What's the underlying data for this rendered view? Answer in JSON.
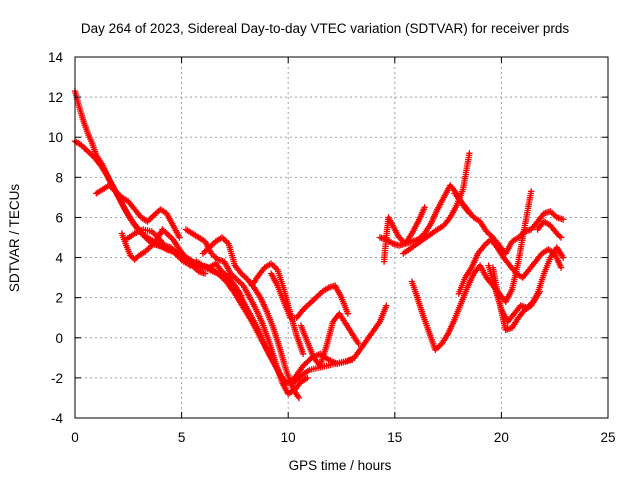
{
  "chart_data": {
    "type": "scatter",
    "title": "Day 264 of 2023, Sidereal Day-to-day VTEC variation (SDTVAR) for receiver prds",
    "xlabel": "GPS time / hours",
    "ylabel": "SDTVAR / TECUs",
    "xlim": [
      0,
      25
    ],
    "ylim": [
      -4,
      14
    ],
    "xticks": [
      "0",
      "5",
      "10",
      "15",
      "20",
      "25"
    ],
    "yticks": [
      "-4",
      "-2",
      "0",
      "2",
      "4",
      "6",
      "8",
      "10",
      "12",
      "14"
    ],
    "grid": true,
    "legend": "none",
    "marker": "+",
    "color": "#ff0000",
    "series": [
      {
        "x": [
          0.0,
          0.2,
          0.4,
          0.6,
          0.8,
          1.0,
          1.3,
          1.6,
          1.9,
          2.2,
          2.5,
          2.8,
          3.1,
          3.4,
          3.7,
          4.0,
          4.3,
          4.6,
          5.0,
          5.4,
          5.8,
          6.2,
          6.6,
          7.0,
          7.4,
          7.8,
          8.2,
          8.6,
          9.0,
          9.4,
          9.8,
          10.2,
          10.6,
          11.0,
          11.4,
          11.8,
          12.2,
          12.6,
          13.0
        ],
        "y": [
          12.3,
          11.5,
          10.8,
          10.2,
          9.7,
          9.1,
          8.6,
          7.9,
          7.3,
          6.7,
          6.1,
          5.6,
          5.2,
          5.0,
          4.8,
          4.6,
          4.4,
          4.3,
          4.1,
          3.9,
          3.6,
          3.5,
          3.3,
          3.0,
          2.6,
          2.0,
          1.2,
          0.4,
          -0.6,
          -1.4,
          -2.2,
          -2.3,
          -1.9,
          -1.6,
          -1.5,
          -1.4,
          -1.3,
          -1.2,
          -1.1
        ]
      },
      {
        "x": [
          0.0,
          0.3,
          0.6,
          0.9,
          1.2,
          1.5,
          1.8,
          2.1,
          2.4,
          2.7,
          3.0,
          3.3,
          3.6,
          3.9,
          4.2,
          4.5,
          4.8,
          5.1,
          5.5,
          5.9,
          6.3,
          6.7,
          7.1,
          7.5,
          7.9,
          8.3,
          8.7,
          9.1,
          9.5,
          9.9,
          10.3,
          10.7,
          11.1,
          11.5,
          11.9,
          12.3,
          12.7,
          13.1,
          13.5,
          13.9,
          14.3,
          14.6
        ],
        "y": [
          9.8,
          9.6,
          9.3,
          9.0,
          8.6,
          8.1,
          7.5,
          6.9,
          6.3,
          5.8,
          5.4,
          5.0,
          4.7,
          4.6,
          4.5,
          4.4,
          4.1,
          3.8,
          3.6,
          3.5,
          3.4,
          3.2,
          2.8,
          2.2,
          1.5,
          0.8,
          0.0,
          -0.8,
          -1.6,
          -2.3,
          -2.0,
          -1.4,
          -1.0,
          -0.8,
          -1.1,
          -1.3,
          -1.2,
          -1.0,
          -0.4,
          0.2,
          0.8,
          1.6
        ]
      },
      {
        "x": [
          1.0,
          1.3,
          1.6,
          1.9,
          2.2,
          2.5,
          2.8,
          3.1,
          3.4,
          3.7,
          4.0,
          4.3,
          4.6,
          4.9
        ],
        "y": [
          7.2,
          7.4,
          7.6,
          7.3,
          7.0,
          6.8,
          6.4,
          6.0,
          5.8,
          6.1,
          6.4,
          6.2,
          5.6,
          5.0
        ]
      },
      {
        "x": [
          2.2,
          2.4,
          2.6,
          2.8,
          3.0,
          3.3,
          3.6,
          3.9,
          4.1,
          4.3,
          4.6,
          4.9,
          5.2,
          5.5,
          5.8,
          6.1
        ],
        "y": [
          5.2,
          4.6,
          4.1,
          3.9,
          4.1,
          4.3,
          4.6,
          5.0,
          5.4,
          5.2,
          4.9,
          4.4,
          4.0,
          3.6,
          3.3,
          3.2
        ]
      },
      {
        "x": [
          2.4,
          2.8,
          3.2,
          3.6,
          3.9,
          4.2,
          4.5,
          4.8,
          5.1,
          5.4,
          5.7,
          6.0,
          6.3,
          6.6,
          6.9,
          7.2,
          7.5,
          7.8
        ],
        "y": [
          4.9,
          5.2,
          5.4,
          5.3,
          5.0,
          4.6,
          4.5,
          4.2,
          3.9,
          3.6,
          3.8,
          3.6,
          3.5,
          3.7,
          3.3,
          3.0,
          2.6,
          2.1
        ]
      },
      {
        "x": [
          5.2,
          5.5,
          5.8,
          6.1,
          6.4,
          6.7,
          7.0,
          7.3,
          7.6,
          7.9,
          8.2,
          8.5,
          8.8,
          9.1,
          9.4,
          9.7,
          10.0,
          10.3,
          10.6,
          10.9
        ],
        "y": [
          5.4,
          5.2,
          5.0,
          4.8,
          4.2,
          3.9,
          3.8,
          3.2,
          2.9,
          2.6,
          2.0,
          1.4,
          0.7,
          -0.2,
          -1.2,
          -2.2,
          -2.8,
          -2.6,
          -2.2,
          -2.0
        ]
      },
      {
        "x": [
          6.0,
          6.3,
          6.6,
          6.9,
          7.2,
          7.5,
          7.8,
          8.1,
          8.4,
          8.7,
          9.0,
          9.3,
          9.6,
          9.9,
          10.2,
          10.5
        ],
        "y": [
          4.2,
          4.5,
          4.8,
          5.0,
          4.7,
          3.6,
          3.2,
          2.9,
          2.5,
          2.0,
          1.3,
          0.5,
          -0.5,
          -1.6,
          -2.5,
          -3.0
        ]
      },
      {
        "x": [
          8.3,
          8.6,
          8.9,
          9.2,
          9.5,
          9.8,
          10.1,
          10.4,
          10.7
        ],
        "y": [
          2.6,
          3.1,
          3.5,
          3.7,
          3.4,
          2.4,
          1.2,
          0.1,
          -0.8
        ]
      },
      {
        "x": [
          9.2,
          9.5,
          9.8,
          10.1,
          10.4,
          10.7,
          11.0,
          11.3,
          11.6,
          11.9,
          12.2,
          12.5,
          12.8
        ],
        "y": [
          3.2,
          2.6,
          1.8,
          1.0,
          1.0,
          1.4,
          1.7,
          2.0,
          2.3,
          2.5,
          2.6,
          2.0,
          1.2
        ]
      },
      {
        "x": [
          10.6,
          10.9,
          11.2,
          11.5,
          11.8,
          12.1,
          12.4,
          12.7,
          13.0,
          13.3
        ],
        "y": [
          0.6,
          -0.2,
          -1.0,
          -1.4,
          -0.4,
          0.8,
          1.2,
          0.7,
          0.2,
          -0.3
        ]
      },
      {
        "x": [
          14.5,
          14.6,
          14.7,
          14.9,
          15.2,
          15.5,
          15.8,
          16.1,
          16.4,
          16.7,
          17.0,
          17.3,
          17.6,
          17.9,
          18.2,
          18.5
        ],
        "y": [
          3.8,
          5.0,
          6.0,
          5.6,
          5.0,
          4.7,
          4.8,
          4.9,
          5.2,
          5.7,
          6.4,
          7.0,
          7.6,
          7.2,
          6.6,
          6.2
        ]
      },
      {
        "x": [
          15.4,
          15.8,
          16.2,
          16.6,
          17.0,
          17.3,
          17.6,
          17.9,
          18.2,
          18.5
        ],
        "y": [
          4.2,
          4.5,
          4.8,
          5.1,
          5.4,
          5.6,
          6.0,
          6.6,
          7.4,
          9.2
        ]
      },
      {
        "x": [
          14.3,
          14.6,
          14.9,
          15.2,
          15.5,
          15.8,
          16.1,
          16.4
        ],
        "y": [
          5.0,
          4.9,
          4.7,
          4.6,
          4.7,
          5.2,
          5.8,
          6.5
        ]
      },
      {
        "x": [
          15.8,
          16.0,
          16.3,
          16.6,
          16.9,
          17.2,
          17.5,
          17.8,
          18.1,
          18.4,
          18.7,
          19.0,
          19.3,
          19.6,
          19.9,
          20.2,
          20.5,
          20.8,
          21.1,
          21.4
        ],
        "y": [
          2.8,
          2.2,
          1.2,
          0.3,
          -0.6,
          -0.3,
          0.2,
          0.9,
          1.7,
          2.5,
          3.2,
          3.6,
          3.0,
          2.6,
          2.2,
          1.8,
          2.4,
          3.8,
          5.6,
          7.3
        ]
      },
      {
        "x": [
          17.8,
          18.1,
          18.4,
          18.7,
          19.0,
          19.3,
          19.6,
          19.9,
          20.2,
          20.5,
          20.8,
          21.1,
          21.4,
          21.7,
          22.0,
          22.3,
          22.6,
          22.9
        ],
        "y": [
          7.2,
          6.8,
          6.4,
          6.0,
          5.8,
          5.3,
          5.0,
          4.6,
          4.2,
          4.8,
          5.0,
          5.3,
          5.4,
          5.8,
          6.2,
          6.3,
          6.0,
          5.9
        ]
      },
      {
        "x": [
          18.0,
          18.3,
          18.6,
          18.9,
          19.2,
          19.5,
          19.8,
          20.1,
          20.4,
          20.7,
          21.0,
          21.3,
          21.6,
          21.9,
          22.2,
          22.5,
          22.8
        ],
        "y": [
          2.2,
          3.0,
          3.5,
          4.2,
          4.6,
          4.9,
          4.5,
          4.0,
          3.6,
          3.2,
          3.0,
          3.4,
          3.8,
          4.2,
          4.4,
          4.2,
          3.5
        ]
      },
      {
        "x": [
          19.6,
          19.9,
          20.2,
          20.5,
          20.8,
          21.1,
          21.4,
          21.7,
          22.0,
          22.3,
          22.6,
          22.9
        ],
        "y": [
          3.5,
          1.8,
          0.4,
          0.5,
          1.0,
          1.4,
          1.6,
          2.2,
          3.2,
          4.0,
          4.5,
          4.0
        ]
      },
      {
        "x": [
          19.4,
          19.7,
          20.0,
          20.3,
          20.6,
          20.9,
          21.2,
          21.5,
          21.8
        ],
        "y": [
          3.6,
          2.5,
          1.4,
          0.8,
          1.2,
          1.6,
          1.5,
          1.8,
          2.3
        ]
      },
      {
        "x": [
          21.7,
          22.0,
          22.3,
          22.6,
          22.8
        ],
        "y": [
          5.4,
          5.8,
          5.6,
          5.2,
          5.0
        ]
      }
    ]
  }
}
